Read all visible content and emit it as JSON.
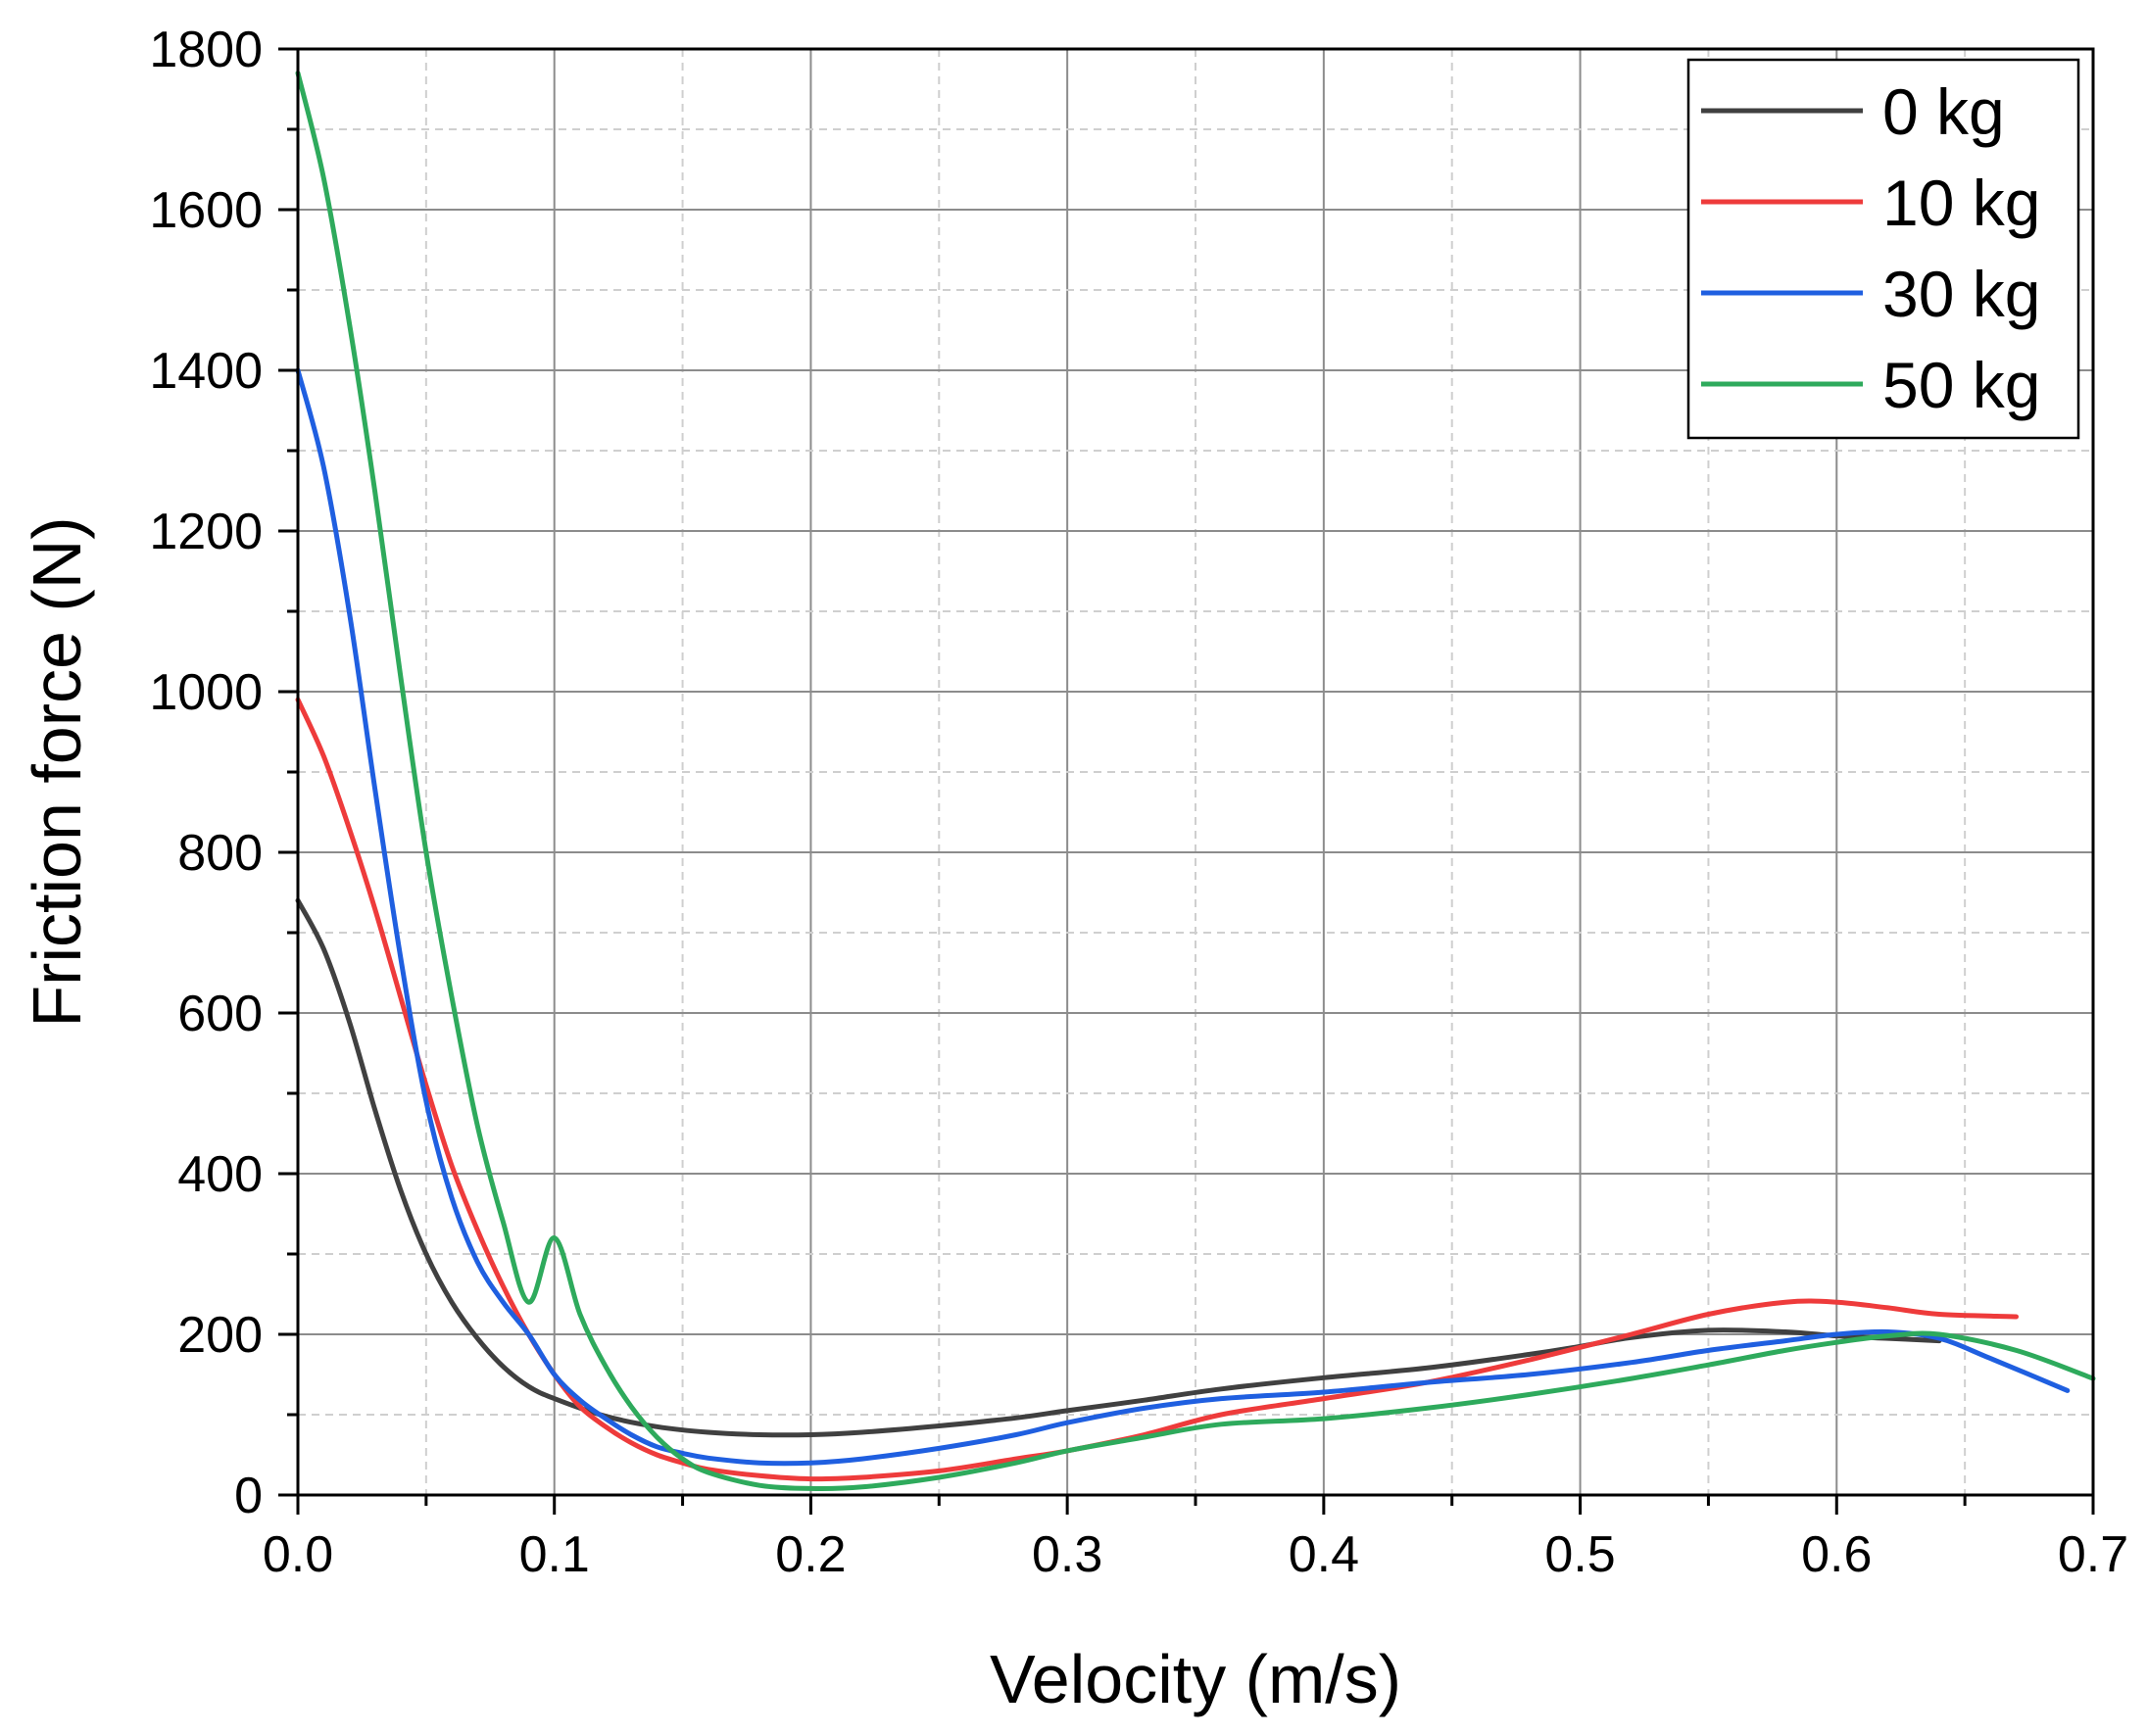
{
  "chart_data": {
    "type": "line",
    "xlabel": "Velocity (m/s)",
    "ylabel": "Friction force (N)",
    "xlim": [
      0.0,
      0.7
    ],
    "ylim": [
      0,
      1800
    ],
    "xticks": [
      0.0,
      0.1,
      0.2,
      0.3,
      0.4,
      0.5,
      0.6,
      0.7
    ],
    "xtick_labels": [
      "0.0",
      "0.1",
      "0.2",
      "0.3",
      "0.4",
      "0.5",
      "0.6",
      "0.7"
    ],
    "yticks": [
      0,
      200,
      400,
      600,
      800,
      1000,
      1200,
      1400,
      1600,
      1800
    ],
    "ytick_labels": [
      "0",
      "200",
      "400",
      "600",
      "800",
      "1000",
      "1200",
      "1400",
      "1600",
      "1800"
    ],
    "grid": true,
    "legend_position": "top-right",
    "series": [
      {
        "name": "0 kg",
        "color": "#404040",
        "x": [
          0.0,
          0.01,
          0.02,
          0.03,
          0.04,
          0.05,
          0.06,
          0.07,
          0.08,
          0.09,
          0.1,
          0.12,
          0.14,
          0.16,
          0.18,
          0.2,
          0.22,
          0.25,
          0.28,
          0.3,
          0.33,
          0.36,
          0.4,
          0.44,
          0.48,
          0.5,
          0.52,
          0.55,
          0.58,
          0.6,
          0.62,
          0.64
        ],
        "y": [
          740,
          680,
          590,
          480,
          380,
          300,
          240,
          195,
          160,
          135,
          120,
          98,
          85,
          78,
          75,
          75,
          78,
          86,
          96,
          105,
          118,
          132,
          146,
          158,
          175,
          185,
          196,
          205,
          203,
          198,
          195,
          192
        ]
      },
      {
        "name": "10 kg",
        "color": "#ee3b3b",
        "x": [
          0.0,
          0.01,
          0.02,
          0.03,
          0.04,
          0.05,
          0.06,
          0.07,
          0.08,
          0.09,
          0.1,
          0.11,
          0.12,
          0.13,
          0.14,
          0.15,
          0.16,
          0.18,
          0.2,
          0.22,
          0.25,
          0.28,
          0.3,
          0.33,
          0.36,
          0.4,
          0.44,
          0.48,
          0.52,
          0.55,
          0.58,
          0.6,
          0.62,
          0.64,
          0.67
        ],
        "y": [
          990,
          920,
          830,
          730,
          620,
          510,
          410,
          330,
          260,
          200,
          150,
          110,
          85,
          65,
          50,
          40,
          32,
          24,
          20,
          22,
          30,
          45,
          55,
          75,
          100,
          120,
          140,
          168,
          200,
          225,
          240,
          240,
          233,
          225,
          222
        ]
      },
      {
        "name": "30 kg",
        "color": "#1f5fe0",
        "x": [
          0.0,
          0.01,
          0.02,
          0.03,
          0.04,
          0.05,
          0.06,
          0.07,
          0.08,
          0.09,
          0.1,
          0.11,
          0.12,
          0.13,
          0.14,
          0.15,
          0.16,
          0.18,
          0.2,
          0.22,
          0.25,
          0.28,
          0.3,
          0.33,
          0.36,
          0.4,
          0.44,
          0.48,
          0.52,
          0.55,
          0.58,
          0.6,
          0.62,
          0.64,
          0.66,
          0.69
        ],
        "y": [
          1400,
          1280,
          1100,
          880,
          670,
          490,
          370,
          290,
          240,
          200,
          150,
          118,
          95,
          75,
          60,
          52,
          46,
          40,
          40,
          45,
          58,
          75,
          90,
          108,
          120,
          128,
          140,
          150,
          165,
          180,
          192,
          200,
          203,
          195,
          170,
          130
        ]
      },
      {
        "name": "50 kg",
        "color": "#2eaa5c",
        "x": [
          0.0,
          0.01,
          0.02,
          0.03,
          0.04,
          0.05,
          0.06,
          0.07,
          0.08,
          0.09,
          0.1,
          0.11,
          0.12,
          0.13,
          0.14,
          0.15,
          0.16,
          0.18,
          0.2,
          0.22,
          0.25,
          0.28,
          0.3,
          0.33,
          0.36,
          0.4,
          0.44,
          0.48,
          0.52,
          0.55,
          0.58,
          0.6,
          0.62,
          0.64,
          0.67,
          0.7
        ],
        "y": [
          1770,
          1640,
          1460,
          1250,
          1020,
          800,
          620,
          460,
          340,
          240,
          320,
          225,
          160,
          110,
          72,
          45,
          28,
          12,
          8,
          10,
          22,
          40,
          55,
          72,
          88,
          95,
          108,
          125,
          145,
          162,
          180,
          190,
          198,
          200,
          180,
          145
        ]
      }
    ]
  }
}
